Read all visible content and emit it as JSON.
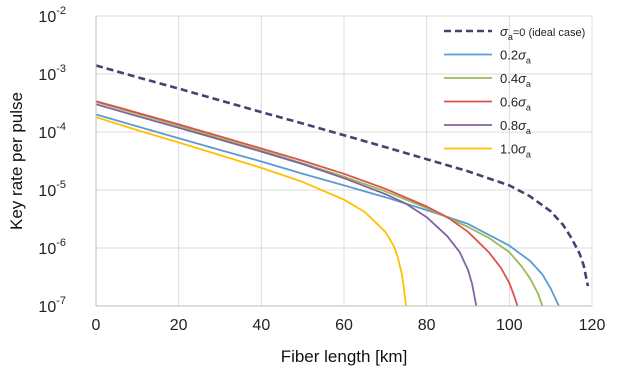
{
  "chart_data": {
    "type": "line",
    "xlabel": "Fiber length [km]",
    "ylabel": "Key rate per pulse",
    "xlim": [
      0,
      120
    ],
    "ylim": [
      1e-07,
      0.01
    ],
    "yscale": "log",
    "xticks": [
      "0",
      "20",
      "40",
      "60",
      "80",
      "100",
      "120"
    ],
    "yticks": [
      {
        "base": "10",
        "exp": "-7"
      },
      {
        "base": "10",
        "exp": "-6"
      },
      {
        "base": "10",
        "exp": "-5"
      },
      {
        "base": "10",
        "exp": "-4"
      },
      {
        "base": "10",
        "exp": "-3"
      },
      {
        "base": "10",
        "exp": "-2"
      }
    ],
    "grid": true,
    "legend_position": "top-right",
    "series": [
      {
        "legend_sym": "σ",
        "legend_sub": "a",
        "legend_after": "=0 (ideal case)",
        "color": "#4b3f72",
        "dashed": true,
        "x": [
          0,
          10,
          20,
          30,
          40,
          50,
          60,
          70,
          80,
          90,
          100,
          105,
          110,
          113,
          115,
          117,
          118,
          119
        ],
        "y": [
          0.0014,
          0.00088,
          0.00056,
          0.00035,
          0.00022,
          0.00014,
          8.8e-05,
          5.5e-05,
          3.4e-05,
          2.1e-05,
          1.2e-05,
          7.8e-06,
          4.3e-06,
          2.5e-06,
          1.5e-06,
          8e-07,
          5e-07,
          2.2e-07
        ]
      },
      {
        "legend_sym": "",
        "legend_prefix": "0.2",
        "legend_sym2": "σ",
        "legend_sub": "a",
        "color": "#5b9bd5",
        "dashed": false,
        "x": [
          0,
          10,
          20,
          30,
          40,
          50,
          60,
          70,
          80,
          90,
          100,
          105,
          108,
          110,
          112
        ],
        "y": [
          0.0002,
          0.000125,
          7.8e-05,
          4.9e-05,
          3.1e-05,
          1.9e-05,
          1.2e-05,
          7.5e-06,
          4.5e-06,
          2.6e-06,
          1.1e-06,
          6e-07,
          3.5e-07,
          2e-07,
          1e-07
        ]
      },
      {
        "legend_sym": "",
        "legend_prefix": "0.4",
        "legend_sym2": "σ",
        "legend_sub": "a",
        "color": "#9bbb59",
        "dashed": false,
        "x": [
          0,
          10,
          20,
          30,
          40,
          50,
          60,
          70,
          80,
          90,
          95,
          100,
          103,
          105,
          107,
          108
        ],
        "y": [
          0.00033,
          0.000205,
          0.000128,
          7.8e-05,
          4.8e-05,
          2.9e-05,
          1.7e-05,
          9.5e-06,
          4.9e-06,
          2.3e-06,
          1.5e-06,
          8.5e-07,
          4.8e-07,
          3e-07,
          1.6e-07,
          1e-07
        ]
      },
      {
        "legend_sym": "",
        "legend_prefix": "0.6",
        "legend_sym2": "σ",
        "legend_sub": "a",
        "color": "#d9534f",
        "dashed": false,
        "x": [
          0,
          10,
          20,
          30,
          40,
          50,
          60,
          70,
          80,
          85,
          90,
          95,
          98,
          100,
          101,
          102
        ],
        "y": [
          0.00034,
          0.000215,
          0.000135,
          8.4e-05,
          5.2e-05,
          3.2e-05,
          1.9e-05,
          1.05e-05,
          5.2e-06,
          3.4e-06,
          1.9e-06,
          8.5e-07,
          4.5e-07,
          2.5e-07,
          1.6e-07,
          1e-07
        ]
      },
      {
        "legend_sym": "",
        "legend_prefix": "0.8",
        "legend_sym2": "σ",
        "legend_sub": "a",
        "color": "#8064a2",
        "dashed": false,
        "x": [
          0,
          10,
          20,
          30,
          40,
          50,
          60,
          70,
          75,
          80,
          85,
          88,
          90,
          91,
          92
        ],
        "y": [
          0.0003,
          0.000188,
          0.000118,
          7.4e-05,
          4.6e-05,
          2.8e-05,
          1.6e-05,
          8.5e-06,
          5.8e-06,
          3.4e-06,
          1.6e-06,
          8.5e-07,
          4.2e-07,
          2.4e-07,
          1e-07
        ]
      },
      {
        "legend_sym": "",
        "legend_prefix": "1.0",
        "legend_sym2": "σ",
        "legend_sub": "a",
        "color": "#ffc000",
        "dashed": false,
        "x": [
          0,
          10,
          20,
          30,
          40,
          50,
          60,
          65,
          70,
          72,
          73,
          74,
          74.5,
          75
        ],
        "y": [
          0.00018,
          0.000108,
          6.6e-05,
          4e-05,
          2.4e-05,
          1.38e-05,
          6.8e-06,
          4.2e-06,
          1.9e-06,
          1.1e-06,
          7e-07,
          3.5e-07,
          2e-07,
          1e-07
        ]
      }
    ]
  }
}
